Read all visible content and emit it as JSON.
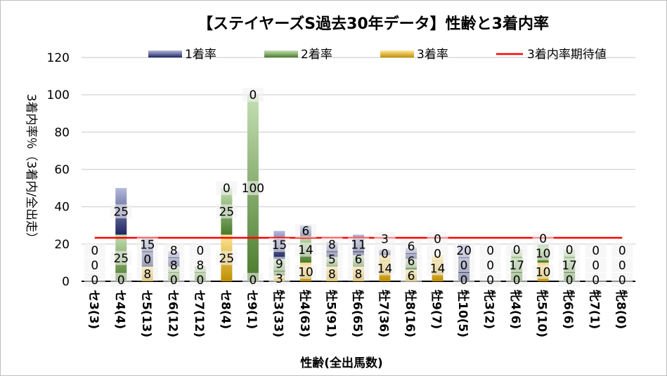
{
  "chart_data": {
    "type": "bar",
    "stacked": true,
    "title": "【ステイヤーズS過去30年データ】性齢と3着内率",
    "xlabel": "性齢(全出馬数)",
    "ylabel": "3着内率％（3着内/全出走）",
    "ylim": [
      0,
      120
    ],
    "yticks": [
      0,
      20,
      40,
      60,
      80,
      100,
      120
    ],
    "grid": true,
    "legend_position": "top",
    "categories": [
      "セ3(3)",
      "セ4(4)",
      "セ5(13)",
      "セ6(12)",
      "セ7(12)",
      "セ8(4)",
      "セ9(1)",
      "牡3(33)",
      "牡4(63)",
      "牡5(91)",
      "牡6(65)",
      "牡7(36)",
      "牡8(16)",
      "牡9(7)",
      "牡10(5)",
      "牝3(2)",
      "牝4(6)",
      "牝5(10)",
      "牝6(6)",
      "牝7(1)",
      "牝8(0)"
    ],
    "series": [
      {
        "name": "3着率",
        "color": "#c9961a",
        "values": [
          0,
          0,
          8,
          0,
          0,
          25,
          0,
          3,
          10,
          8,
          8,
          14,
          6,
          14,
          0,
          0,
          0,
          10,
          0,
          0,
          0
        ]
      },
      {
        "name": "2着率",
        "color": "#548235",
        "values": [
          0,
          25,
          0,
          8,
          8,
          25,
          100,
          9,
          14,
          5,
          6,
          0,
          6,
          0,
          0,
          0,
          17,
          10,
          17,
          0,
          0
        ]
      },
      {
        "name": "1着率",
        "color": "#2f3a7a",
        "values": [
          0,
          25,
          15,
          8,
          0,
          0,
          0,
          15,
          6,
          8,
          11,
          3,
          6,
          0,
          20,
          0,
          0,
          0,
          0,
          0,
          0
        ]
      }
    ],
    "legend_order": [
      "1着率",
      "2着率",
      "3着率",
      "3着内率期待値"
    ],
    "reference_line": {
      "name": "3着内率期待値",
      "value": 23.3,
      "color": "#ff0000"
    }
  }
}
